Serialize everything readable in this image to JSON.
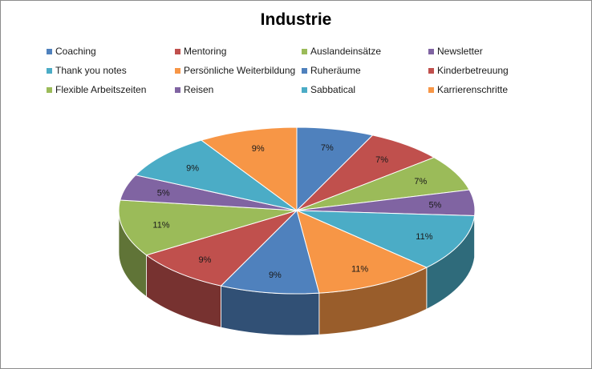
{
  "chart_data": {
    "type": "pie",
    "title": "Industrie",
    "legend_position": "top",
    "categories": [
      "Coaching",
      "Mentoring",
      "Auslandeinsätze",
      "Newsletter",
      "Thank you notes",
      "Persönliche Weiterbildung",
      "Ruheräume",
      "Kinderbetreuung",
      "Flexible Arbeitszeiten",
      "Reisen",
      "Sabbatical",
      "Karrierenschritte"
    ],
    "values": [
      7,
      7,
      7,
      5,
      11,
      11,
      9,
      9,
      11,
      5,
      9,
      9
    ],
    "data_labels": [
      "7%",
      "7%",
      "7%",
      "5%",
      "11%",
      "11%",
      "9%",
      "9%",
      "11%",
      "5%",
      "9%",
      "9%"
    ],
    "colors": [
      "#4f81bd",
      "#c0504d",
      "#9bbb59",
      "#8064a2",
      "#4bacc6",
      "#f79646",
      "#4f81bd",
      "#c0504d",
      "#9bbb59",
      "#8064a2",
      "#4bacc6",
      "#f79646"
    ],
    "style": "3d-pie"
  }
}
